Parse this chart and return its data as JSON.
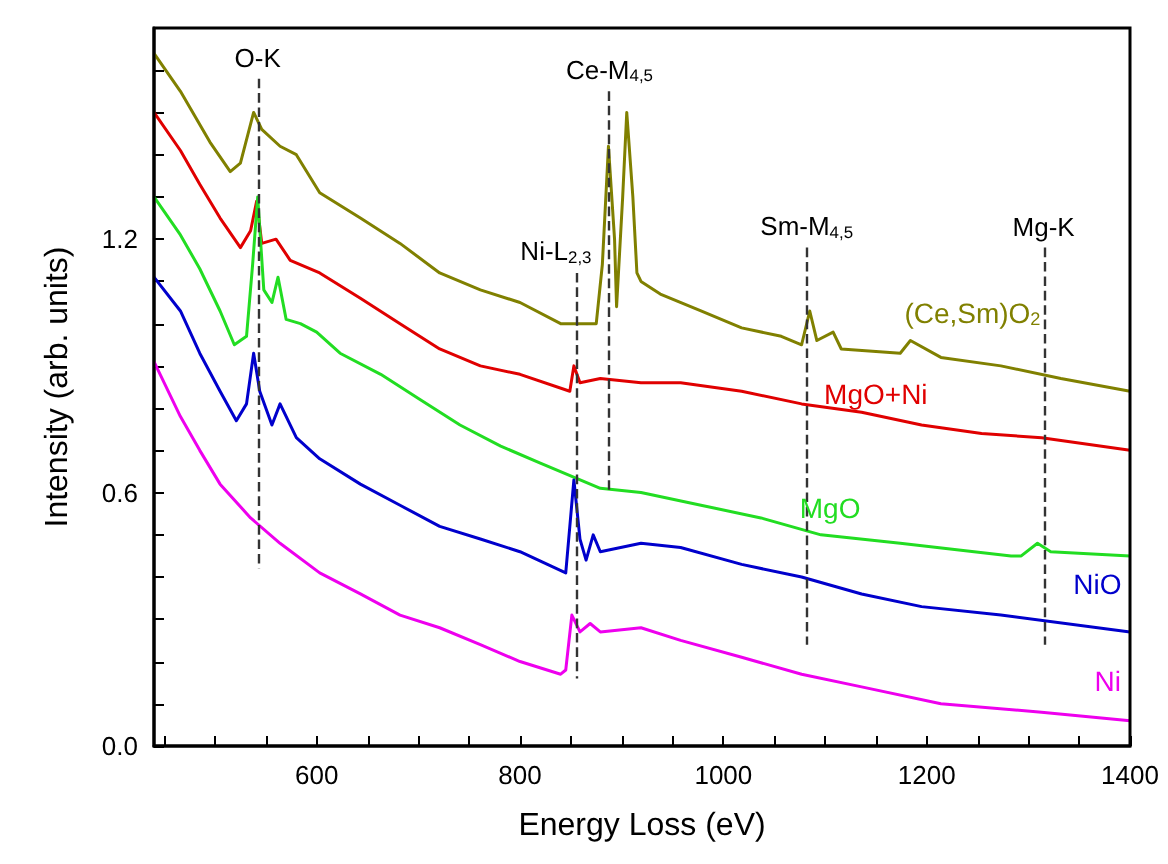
{
  "chart_data": {
    "type": "line",
    "xlabel": "Energy Loss (eV)",
    "ylabel": "Intensity (arb. units)",
    "xlim": [
      440,
      1400
    ],
    "ylim": [
      0,
      1.7
    ],
    "xticks": [
      {
        "value": 450,
        "label": null
      },
      {
        "value": 500,
        "label": null
      },
      {
        "value": 550,
        "label": null
      },
      600,
      {
        "value": 650,
        "label": null
      },
      {
        "value": 700,
        "label": null
      },
      {
        "value": 750,
        "label": null
      },
      800,
      {
        "value": 850,
        "label": null
      },
      {
        "value": 900,
        "label": null
      },
      {
        "value": 950,
        "label": null
      },
      1000,
      {
        "value": 1050,
        "label": null
      },
      {
        "value": 1100,
        "label": null
      },
      {
        "value": 1150,
        "label": null
      },
      1200,
      {
        "value": 1250,
        "label": null
      },
      {
        "value": 1300,
        "label": null
      },
      {
        "value": 1350,
        "label": null
      },
      1400
    ],
    "yticks": [
      {
        "value": 0,
        "label": "0.0"
      },
      {
        "value": 0.1,
        "label": null
      },
      {
        "value": 0.2,
        "label": null
      },
      {
        "value": 0.3,
        "label": null
      },
      {
        "value": 0.4,
        "label": null
      },
      {
        "value": 0.5,
        "label": null
      },
      {
        "value": 0.6,
        "label": "0.6"
      },
      {
        "value": 0.7,
        "label": null
      },
      {
        "value": 0.8,
        "label": null
      },
      {
        "value": 0.9,
        "label": null
      },
      {
        "value": 1.0,
        "label": null
      },
      {
        "value": 1.1,
        "label": null
      },
      {
        "value": 1.2,
        "label": "1.2"
      },
      {
        "value": 1.3,
        "label": null
      },
      {
        "value": 1.4,
        "label": null
      },
      {
        "value": 1.5,
        "label": null
      },
      {
        "value": 1.6,
        "label": null
      }
    ],
    "grid": false,
    "legend": false,
    "marker": "none",
    "line_style": "solid",
    "ref_lines": [
      {
        "axis": "x",
        "value": 542,
        "label": "O-K",
        "line_style": "dashed",
        "color": "#333333"
      },
      {
        "axis": "x",
        "value": 855,
        "label": "Ni-L$_{2,3}$",
        "line_style": "dashed",
        "color": "#333333"
      },
      {
        "axis": "x",
        "value": 888,
        "label": "Ce-M$_{4,5}$",
        "line_style": "dashed",
        "color": "#333333"
      },
      {
        "axis": "x",
        "value": 1082,
        "label": "Sm-M$_{4,5}$",
        "line_style": "dashed",
        "color": "#333333"
      },
      {
        "axis": "x",
        "value": 1315,
        "label": "Mg-K",
        "line_style": "dashed",
        "color": "#333333"
      }
    ],
    "series": [
      {
        "name": "(Ce,Sm)O$_{2}$",
        "color": "#808000",
        "x": [
          440,
          466,
          495,
          515,
          525,
          538,
          546,
          564,
          580,
          603,
          643,
          682,
          721,
          761,
          800,
          840,
          859,
          875,
          881,
          887,
          893,
          895,
          901,
          905,
          911,
          915,
          919,
          938,
          978,
          1018,
          1057,
          1077,
          1085,
          1092,
          1108,
          1116,
          1174,
          1184,
          1214,
          1273,
          1332,
          1400
        ],
        "values": [
          1.64,
          1.55,
          1.43,
          1.36,
          1.38,
          1.5,
          1.46,
          1.42,
          1.4,
          1.31,
          1.25,
          1.19,
          1.12,
          1.08,
          1.05,
          1.0,
          1.0,
          1.0,
          1.14,
          1.42,
          1.2,
          1.04,
          1.3,
          1.5,
          1.3,
          1.12,
          1.1,
          1.07,
          1.03,
          0.99,
          0.97,
          0.95,
          1.03,
          0.96,
          0.98,
          0.94,
          0.93,
          0.96,
          0.92,
          0.9,
          0.87,
          0.84
        ]
      },
      {
        "name": "MgO+Ni",
        "color": "#e00000",
        "x": [
          440,
          466,
          485,
          505,
          525,
          535,
          541,
          546,
          560,
          574,
          603,
          643,
          682,
          721,
          761,
          800,
          849,
          853,
          859,
          879,
          919,
          958,
          1018,
          1077,
          1136,
          1195,
          1254,
          1313,
          1400
        ],
        "values": [
          1.5,
          1.41,
          1.33,
          1.25,
          1.18,
          1.22,
          1.29,
          1.19,
          1.2,
          1.15,
          1.12,
          1.06,
          1.0,
          0.94,
          0.9,
          0.88,
          0.84,
          0.9,
          0.86,
          0.87,
          0.86,
          0.86,
          0.84,
          0.81,
          0.79,
          0.76,
          0.74,
          0.73,
          0.7
        ]
      },
      {
        "name": "MgO",
        "color": "#22dd22",
        "x": [
          440,
          466,
          485,
          505,
          519,
          531,
          537,
          542,
          548,
          556,
          562,
          570,
          584,
          600,
          623,
          663,
          702,
          741,
          781,
          820,
          879,
          919,
          978,
          1037,
          1096,
          1174,
          1283,
          1293,
          1309,
          1322,
          1400
        ],
        "values": [
          1.3,
          1.21,
          1.13,
          1.03,
          0.95,
          0.97,
          1.14,
          1.3,
          1.08,
          1.05,
          1.11,
          1.01,
          1.0,
          0.98,
          0.93,
          0.88,
          0.82,
          0.76,
          0.71,
          0.67,
          0.61,
          0.6,
          0.57,
          0.54,
          0.5,
          0.48,
          0.45,
          0.45,
          0.48,
          0.46,
          0.45
        ]
      },
      {
        "name": "NiO",
        "color": "#0000cc",
        "x": [
          440,
          466,
          485,
          505,
          521,
          531,
          538,
          544,
          556,
          564,
          580,
          603,
          643,
          682,
          721,
          761,
          800,
          845,
          853,
          859,
          865,
          872,
          879,
          919,
          958,
          1018,
          1077,
          1136,
          1195,
          1273,
          1400
        ],
        "values": [
          1.11,
          1.03,
          0.93,
          0.84,
          0.77,
          0.81,
          0.93,
          0.84,
          0.76,
          0.81,
          0.73,
          0.68,
          0.62,
          0.57,
          0.52,
          0.49,
          0.46,
          0.41,
          0.63,
          0.49,
          0.44,
          0.5,
          0.46,
          0.48,
          0.47,
          0.43,
          0.4,
          0.36,
          0.33,
          0.31,
          0.27
        ]
      },
      {
        "name": "Ni",
        "color": "#ee00ee",
        "x": [
          440,
          466,
          485,
          505,
          535,
          564,
          603,
          643,
          682,
          721,
          761,
          800,
          840,
          845,
          851,
          859,
          869,
          879,
          919,
          958,
          1018,
          1077,
          1136,
          1214,
          1313,
          1400
        ],
        "values": [
          0.91,
          0.78,
          0.7,
          0.62,
          0.54,
          0.48,
          0.41,
          0.36,
          0.31,
          0.28,
          0.24,
          0.2,
          0.17,
          0.18,
          0.31,
          0.27,
          0.29,
          0.27,
          0.28,
          0.25,
          0.21,
          0.17,
          0.14,
          0.1,
          0.08,
          0.06
        ]
      }
    ]
  }
}
